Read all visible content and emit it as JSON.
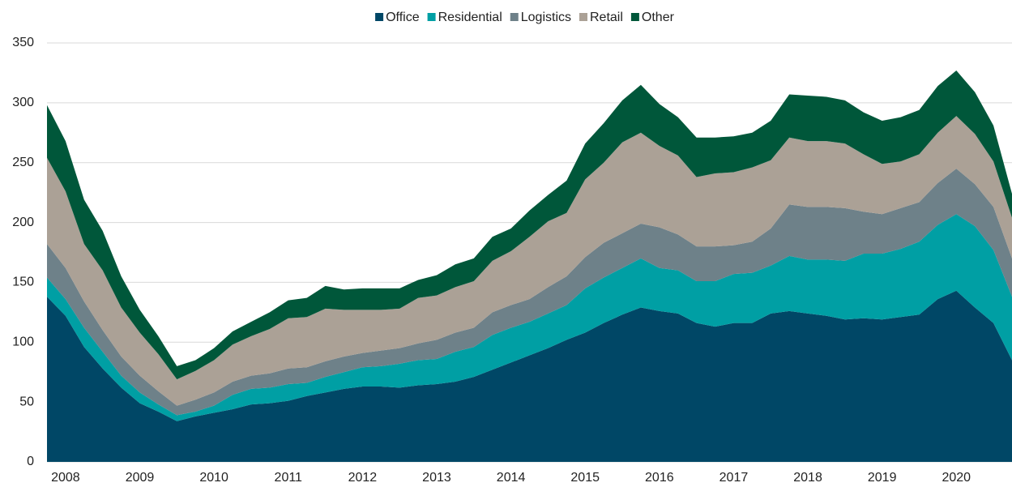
{
  "chart_data": {
    "type": "stacked-area",
    "categories": [
      null,
      "2008",
      null,
      null,
      null,
      "2009",
      null,
      null,
      null,
      "2010",
      null,
      null,
      null,
      "2011",
      null,
      null,
      null,
      "2012",
      null,
      null,
      null,
      "2013",
      null,
      null,
      null,
      "2014",
      null,
      null,
      null,
      "2015",
      null,
      null,
      null,
      "2016",
      null,
      null,
      null,
      "2017",
      null,
      null,
      null,
      "2018",
      null,
      null,
      null,
      "2019",
      null,
      null,
      null,
      "2020",
      null,
      null,
      null
    ],
    "series": [
      {
        "name": "Office",
        "color": "#004766",
        "values": [
          138,
          122,
          96,
          78,
          62,
          49,
          42,
          34,
          38,
          41,
          44,
          48,
          49,
          51,
          55,
          58,
          61,
          63,
          63,
          62,
          64,
          65,
          67,
          71,
          77,
          83,
          89,
          95,
          102,
          108,
          116,
          123,
          129,
          126,
          124,
          116,
          113,
          116,
          116,
          124,
          126,
          124,
          122,
          119,
          120,
          119,
          121,
          123,
          136,
          143,
          129,
          116,
          85
        ]
      },
      {
        "name": "Residential",
        "color": "#009fa4",
        "values": [
          16,
          14,
          16,
          14,
          10,
          9,
          6,
          5,
          4,
          6,
          12,
          13,
          13,
          14,
          11,
          13,
          14,
          16,
          17,
          20,
          21,
          21,
          25,
          25,
          29,
          29,
          28,
          29,
          29,
          37,
          38,
          39,
          41,
          36,
          36,
          35,
          38,
          41,
          42,
          40,
          46,
          45,
          47,
          49,
          54,
          55,
          57,
          61,
          62,
          64,
          68,
          61,
          53
        ]
      },
      {
        "name": "Logistics",
        "color": "#6e8189",
        "values": [
          28,
          26,
          22,
          18,
          16,
          14,
          11,
          8,
          10,
          11,
          11,
          11,
          12,
          13,
          13,
          13,
          13,
          12,
          13,
          13,
          14,
          16,
          16,
          16,
          19,
          19,
          19,
          22,
          24,
          26,
          29,
          29,
          29,
          34,
          30,
          29,
          29,
          24,
          26,
          31,
          43,
          44,
          44,
          44,
          35,
          33,
          34,
          33,
          35,
          38,
          35,
          36,
          32
        ]
      },
      {
        "name": "Retail",
        "color": "#aba196",
        "values": [
          72,
          64,
          48,
          50,
          41,
          36,
          31,
          22,
          24,
          27,
          31,
          33,
          37,
          42,
          42,
          44,
          39,
          36,
          34,
          33,
          38,
          37,
          38,
          39,
          43,
          45,
          52,
          55,
          53,
          65,
          67,
          76,
          76,
          68,
          66,
          58,
          61,
          61,
          62,
          57,
          56,
          55,
          55,
          54,
          48,
          42,
          39,
          40,
          42,
          44,
          42,
          38,
          34
        ]
      },
      {
        "name": "Other",
        "color": "#00573a",
        "values": [
          44,
          42,
          37,
          33,
          26,
          19,
          15,
          11,
          9,
          10,
          11,
          12,
          14,
          15,
          16,
          19,
          17,
          18,
          18,
          17,
          15,
          17,
          19,
          19,
          20,
          19,
          22,
          22,
          27,
          30,
          33,
          35,
          40,
          35,
          32,
          33,
          30,
          30,
          29,
          33,
          36,
          38,
          37,
          36,
          35,
          36,
          37,
          37,
          39,
          38,
          35,
          30,
          20
        ]
      }
    ],
    "ylim": [
      0,
      350
    ],
    "yticks": [
      0,
      50,
      100,
      150,
      200,
      250,
      300,
      350
    ],
    "grid": true,
    "legend": "top"
  }
}
